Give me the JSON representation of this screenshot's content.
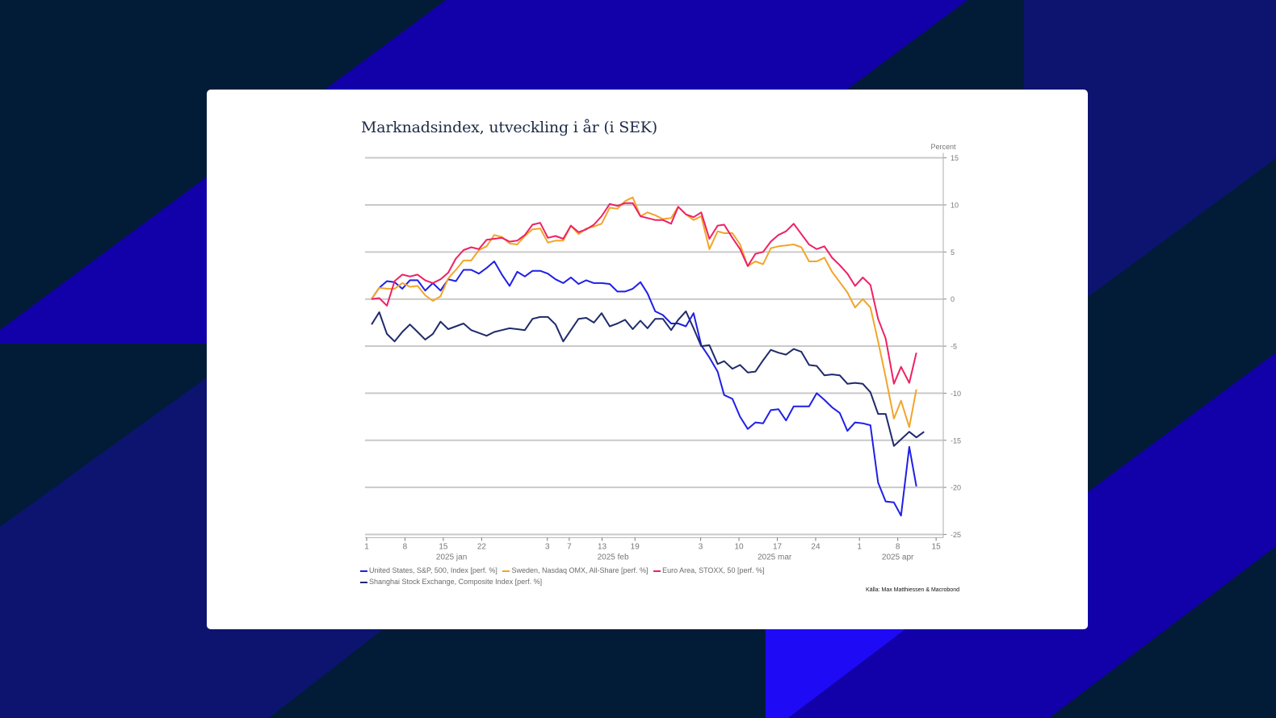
{
  "colors": {
    "background_dark": "#021c38",
    "band_purple": "#1200a8",
    "band_navy": "#0c1470",
    "band_bright": "#1e0af5",
    "gridline": "#c9c9c9",
    "axis_text": "#777777"
  },
  "chart_data": {
    "type": "line",
    "title": "Marknadsindex, utveckling i år (i SEK)",
    "ylabel": "Percent",
    "xlabel": "",
    "x_unit": "days since 2025-01-01",
    "xlim": [
      0,
      104
    ],
    "ylim": [
      -25,
      15
    ],
    "yticks": [
      15,
      10,
      5,
      0,
      -5,
      -10,
      -15,
      -20,
      -25
    ],
    "grid": true,
    "y_axis_side": "right",
    "legend_position": "bottom-left",
    "xticks": [
      {
        "day": 0,
        "label": "1"
      },
      {
        "day": 7,
        "label": "8"
      },
      {
        "day": 14,
        "label": "15"
      },
      {
        "day": 21,
        "label": "22"
      },
      {
        "day": 33,
        "label": "3"
      },
      {
        "day": 37,
        "label": "7"
      },
      {
        "day": 43,
        "label": "13"
      },
      {
        "day": 49,
        "label": "19"
      },
      {
        "day": 61,
        "label": "3"
      },
      {
        "day": 68,
        "label": "10"
      },
      {
        "day": 75,
        "label": "17"
      },
      {
        "day": 82,
        "label": "24"
      },
      {
        "day": 90,
        "label": "1"
      },
      {
        "day": 97,
        "label": "8"
      },
      {
        "day": 104,
        "label": "15"
      }
    ],
    "months": [
      {
        "label": "2025 jan",
        "start": 0,
        "end": 31
      },
      {
        "label": "2025 feb",
        "start": 31,
        "end": 59
      },
      {
        "label": "2025 mar",
        "start": 59,
        "end": 90
      },
      {
        "label": "2025 apr",
        "start": 90,
        "end": 120
      }
    ],
    "series": [
      {
        "name": "United States, S&P, 500, Index [perf. %]",
        "color": "#1f1fe8",
        "points": [
          [
            0.9,
            0
          ],
          [
            2.3,
            1.2
          ],
          [
            3.7,
            1.9
          ],
          [
            5.1,
            1.8
          ],
          [
            6.5,
            1.1
          ],
          [
            7.9,
            2.0
          ],
          [
            9.3,
            2.0
          ],
          [
            10.7,
            0.9
          ],
          [
            12.1,
            1.7
          ],
          [
            13.5,
            0.9
          ],
          [
            14.9,
            2.1
          ],
          [
            16.3,
            1.9
          ],
          [
            17.7,
            3.1
          ],
          [
            19.1,
            3.1
          ],
          [
            20.5,
            2.7
          ],
          [
            21.9,
            3.3
          ],
          [
            23.3,
            4.0
          ],
          [
            24.7,
            2.6
          ],
          [
            26.1,
            1.4
          ],
          [
            27.5,
            2.9
          ],
          [
            28.9,
            2.4
          ],
          [
            30.3,
            3.0
          ],
          [
            31.7,
            3.0
          ],
          [
            33.1,
            2.7
          ],
          [
            34.5,
            2.1
          ],
          [
            35.9,
            1.7
          ],
          [
            37.3,
            2.3
          ],
          [
            38.7,
            1.6
          ],
          [
            40.1,
            2.0
          ],
          [
            41.5,
            1.7
          ],
          [
            42.9,
            1.7
          ],
          [
            44.4,
            1.6
          ],
          [
            45.8,
            0.8
          ],
          [
            47.2,
            0.8
          ],
          [
            48.6,
            1.1
          ],
          [
            50.0,
            1.8
          ],
          [
            51.3,
            0.6
          ],
          [
            52.7,
            -1.3
          ],
          [
            54.1,
            -1.7
          ],
          [
            55.6,
            -2.6
          ],
          [
            56.9,
            -2.6
          ],
          [
            58.3,
            -2.9
          ],
          [
            59.7,
            -1.5
          ],
          [
            61.1,
            -4.9
          ],
          [
            62.6,
            -6.2
          ],
          [
            64.1,
            -7.7
          ],
          [
            65.3,
            -10.2
          ],
          [
            66.8,
            -10.6
          ],
          [
            68.2,
            -12.5
          ],
          [
            69.6,
            -13.8
          ],
          [
            71.0,
            -13.1
          ],
          [
            72.4,
            -13.2
          ],
          [
            73.8,
            -11.8
          ],
          [
            75.2,
            -11.7
          ],
          [
            76.6,
            -12.9
          ],
          [
            78.0,
            -11.4
          ],
          [
            79.4,
            -11.4
          ],
          [
            80.8,
            -11.4
          ],
          [
            82.2,
            -10.0
          ],
          [
            83.6,
            -10.7
          ],
          [
            85.0,
            -11.5
          ],
          [
            86.4,
            -12.1
          ],
          [
            87.8,
            -14.0
          ],
          [
            89.2,
            -13.1
          ],
          [
            90.6,
            -13.2
          ],
          [
            92.0,
            -13.4
          ],
          [
            93.4,
            -19.5
          ],
          [
            94.8,
            -21.5
          ],
          [
            96.3,
            -21.6
          ],
          [
            97.6,
            -23.0
          ],
          [
            99.1,
            -15.7
          ],
          [
            100.4,
            -19.9
          ]
        ]
      },
      {
        "name": "Sweden, Nasdaq OMX, All-Share [perf. %]",
        "color": "#f2a529",
        "points": [
          [
            0.9,
            0
          ],
          [
            2.3,
            1.2
          ],
          [
            3.7,
            1.1
          ],
          [
            5.1,
            1.1
          ],
          [
            6.5,
            1.7
          ],
          [
            7.9,
            1.3
          ],
          [
            9.3,
            1.4
          ],
          [
            10.7,
            0.4
          ],
          [
            12.1,
            -0.2
          ],
          [
            13.5,
            0.3
          ],
          [
            14.9,
            2.2
          ],
          [
            16.3,
            3.1
          ],
          [
            17.7,
            4.1
          ],
          [
            19.1,
            4.1
          ],
          [
            20.5,
            5.2
          ],
          [
            21.9,
            5.6
          ],
          [
            23.3,
            6.8
          ],
          [
            24.7,
            6.6
          ],
          [
            26.1,
            5.9
          ],
          [
            27.5,
            5.8
          ],
          [
            28.9,
            6.7
          ],
          [
            30.3,
            7.4
          ],
          [
            31.7,
            7.5
          ],
          [
            33.1,
            6.0
          ],
          [
            34.5,
            6.2
          ],
          [
            35.9,
            6.2
          ],
          [
            37.3,
            7.8
          ],
          [
            38.7,
            6.9
          ],
          [
            40.1,
            7.5
          ],
          [
            41.5,
            7.7
          ],
          [
            42.9,
            8.0
          ],
          [
            44.4,
            9.7
          ],
          [
            45.8,
            9.6
          ],
          [
            47.2,
            10.4
          ],
          [
            48.6,
            10.8
          ],
          [
            50.0,
            8.8
          ],
          [
            51.3,
            9.2
          ],
          [
            52.7,
            8.9
          ],
          [
            54.1,
            8.5
          ],
          [
            55.6,
            8.6
          ],
          [
            56.9,
            9.8
          ],
          [
            58.3,
            9.0
          ],
          [
            59.7,
            8.4
          ],
          [
            61.1,
            8.8
          ],
          [
            62.6,
            5.3
          ],
          [
            64.1,
            7.2
          ],
          [
            65.3,
            7.0
          ],
          [
            66.8,
            7.0
          ],
          [
            68.2,
            5.8
          ],
          [
            69.6,
            3.5
          ],
          [
            71.0,
            4.0
          ],
          [
            72.4,
            3.7
          ],
          [
            73.8,
            5.4
          ],
          [
            75.2,
            5.6
          ],
          [
            76.6,
            5.7
          ],
          [
            78.0,
            5.8
          ],
          [
            79.4,
            5.5
          ],
          [
            80.8,
            4.0
          ],
          [
            82.2,
            4.0
          ],
          [
            83.6,
            4.4
          ],
          [
            85.0,
            2.9
          ],
          [
            86.4,
            1.8
          ],
          [
            87.8,
            0.7
          ],
          [
            89.2,
            -0.9
          ],
          [
            90.6,
            0.0
          ],
          [
            92.0,
            -0.9
          ],
          [
            93.4,
            -4.5
          ],
          [
            94.8,
            -8.3
          ],
          [
            96.3,
            -12.7
          ],
          [
            97.6,
            -10.8
          ],
          [
            99.1,
            -13.6
          ],
          [
            100.4,
            -9.6
          ]
        ]
      },
      {
        "name": "Euro Area, STOXX, 50 [perf. %]",
        "color": "#ee2163",
        "points": [
          [
            0.9,
            0
          ],
          [
            2.3,
            0.1
          ],
          [
            3.7,
            -0.7
          ],
          [
            5.1,
            1.9
          ],
          [
            6.5,
            2.6
          ],
          [
            7.9,
            2.4
          ],
          [
            9.3,
            2.6
          ],
          [
            10.7,
            2.0
          ],
          [
            12.1,
            1.7
          ],
          [
            13.5,
            2.1
          ],
          [
            14.9,
            2.8
          ],
          [
            16.3,
            4.3
          ],
          [
            17.7,
            5.2
          ],
          [
            19.1,
            5.5
          ],
          [
            20.5,
            5.3
          ],
          [
            21.9,
            6.3
          ],
          [
            23.3,
            6.4
          ],
          [
            24.7,
            6.5
          ],
          [
            26.1,
            6.1
          ],
          [
            27.5,
            6.2
          ],
          [
            28.9,
            6.8
          ],
          [
            30.3,
            7.9
          ],
          [
            31.7,
            8.1
          ],
          [
            33.1,
            6.5
          ],
          [
            34.5,
            6.7
          ],
          [
            35.9,
            6.4
          ],
          [
            37.3,
            7.8
          ],
          [
            38.7,
            7.1
          ],
          [
            40.1,
            7.4
          ],
          [
            41.5,
            7.9
          ],
          [
            42.9,
            8.8
          ],
          [
            44.4,
            10.1
          ],
          [
            45.8,
            9.9
          ],
          [
            47.2,
            10.2
          ],
          [
            48.6,
            10.2
          ],
          [
            50.0,
            8.8
          ],
          [
            51.3,
            8.6
          ],
          [
            52.7,
            8.4
          ],
          [
            54.1,
            8.4
          ],
          [
            55.6,
            8.0
          ],
          [
            56.9,
            9.8
          ],
          [
            58.3,
            9.0
          ],
          [
            59.7,
            8.7
          ],
          [
            61.1,
            9.2
          ],
          [
            62.6,
            6.4
          ],
          [
            64.1,
            7.8
          ],
          [
            65.3,
            7.9
          ],
          [
            66.8,
            6.5
          ],
          [
            68.2,
            5.3
          ],
          [
            69.6,
            3.5
          ],
          [
            71.0,
            4.8
          ],
          [
            72.4,
            5.0
          ],
          [
            73.8,
            6.1
          ],
          [
            75.2,
            6.8
          ],
          [
            76.6,
            7.2
          ],
          [
            78.0,
            8.0
          ],
          [
            79.4,
            6.9
          ],
          [
            80.8,
            5.8
          ],
          [
            82.2,
            5.3
          ],
          [
            83.6,
            5.6
          ],
          [
            85.0,
            4.4
          ],
          [
            86.4,
            3.6
          ],
          [
            87.8,
            2.7
          ],
          [
            89.2,
            1.4
          ],
          [
            90.6,
            2.3
          ],
          [
            92.0,
            1.5
          ],
          [
            93.4,
            -2.1
          ],
          [
            94.8,
            -4.2
          ],
          [
            96.3,
            -9.0
          ],
          [
            97.6,
            -7.2
          ],
          [
            99.1,
            -8.9
          ],
          [
            100.4,
            -5.7
          ]
        ]
      },
      {
        "name": "Shanghai Stock Exchange, Composite Index [perf. %]",
        "color": "#1f2a6b",
        "points": [
          [
            0.9,
            -2.7
          ],
          [
            2.3,
            -1.4
          ],
          [
            3.7,
            -3.7
          ],
          [
            5.1,
            -4.5
          ],
          [
            6.5,
            -3.5
          ],
          [
            7.9,
            -2.7
          ],
          [
            9.3,
            -3.5
          ],
          [
            10.7,
            -4.3
          ],
          [
            12.1,
            -3.7
          ],
          [
            13.5,
            -2.4
          ],
          [
            14.9,
            -3.2
          ],
          [
            16.3,
            -2.9
          ],
          [
            17.7,
            -2.6
          ],
          [
            19.1,
            -3.3
          ],
          [
            20.5,
            -3.6
          ],
          [
            21.9,
            -3.9
          ],
          [
            23.3,
            -3.5
          ],
          [
            24.7,
            -3.3
          ],
          [
            26.1,
            -3.1
          ],
          [
            27.5,
            -3.2
          ],
          [
            28.9,
            -3.3
          ],
          [
            30.3,
            -2.1
          ],
          [
            31.7,
            -1.9
          ],
          [
            33.1,
            -1.9
          ],
          [
            34.5,
            -2.7
          ],
          [
            35.9,
            -4.5
          ],
          [
            37.3,
            -3.3
          ],
          [
            38.7,
            -2.1
          ],
          [
            40.1,
            -2.0
          ],
          [
            41.5,
            -2.5
          ],
          [
            42.9,
            -1.5
          ],
          [
            44.4,
            -2.9
          ],
          [
            45.8,
            -2.6
          ],
          [
            47.2,
            -2.2
          ],
          [
            48.6,
            -3.2
          ],
          [
            50.0,
            -2.3
          ],
          [
            51.3,
            -3.1
          ],
          [
            52.7,
            -2.1
          ],
          [
            54.1,
            -2.1
          ],
          [
            55.6,
            -3.3
          ],
          [
            56.9,
            -2.2
          ],
          [
            58.3,
            -1.3
          ],
          [
            59.7,
            -3.1
          ],
          [
            61.1,
            -5.0
          ],
          [
            62.6,
            -4.9
          ],
          [
            64.1,
            -6.9
          ],
          [
            65.3,
            -6.6
          ],
          [
            66.8,
            -7.4
          ],
          [
            68.2,
            -7.0
          ],
          [
            69.6,
            -7.8
          ],
          [
            71.0,
            -7.7
          ],
          [
            72.4,
            -6.5
          ],
          [
            73.8,
            -5.4
          ],
          [
            75.2,
            -5.7
          ],
          [
            76.6,
            -5.9
          ],
          [
            78.0,
            -5.3
          ],
          [
            79.4,
            -5.6
          ],
          [
            80.8,
            -7.0
          ],
          [
            82.2,
            -7.1
          ],
          [
            83.6,
            -8.1
          ],
          [
            85.0,
            -8.0
          ],
          [
            86.4,
            -8.1
          ],
          [
            87.8,
            -9.0
          ],
          [
            89.2,
            -8.9
          ],
          [
            90.6,
            -9.0
          ],
          [
            92.0,
            -9.9
          ],
          [
            93.4,
            -12.2
          ],
          [
            94.8,
            -12.2
          ],
          [
            96.3,
            -15.6
          ],
          [
            97.6,
            -14.9
          ],
          [
            99.1,
            -14.1
          ],
          [
            100.4,
            -14.7
          ],
          [
            101.8,
            -14.1
          ]
        ]
      }
    ],
    "source": "Källa: Max Matthiessen & Macrobond"
  }
}
